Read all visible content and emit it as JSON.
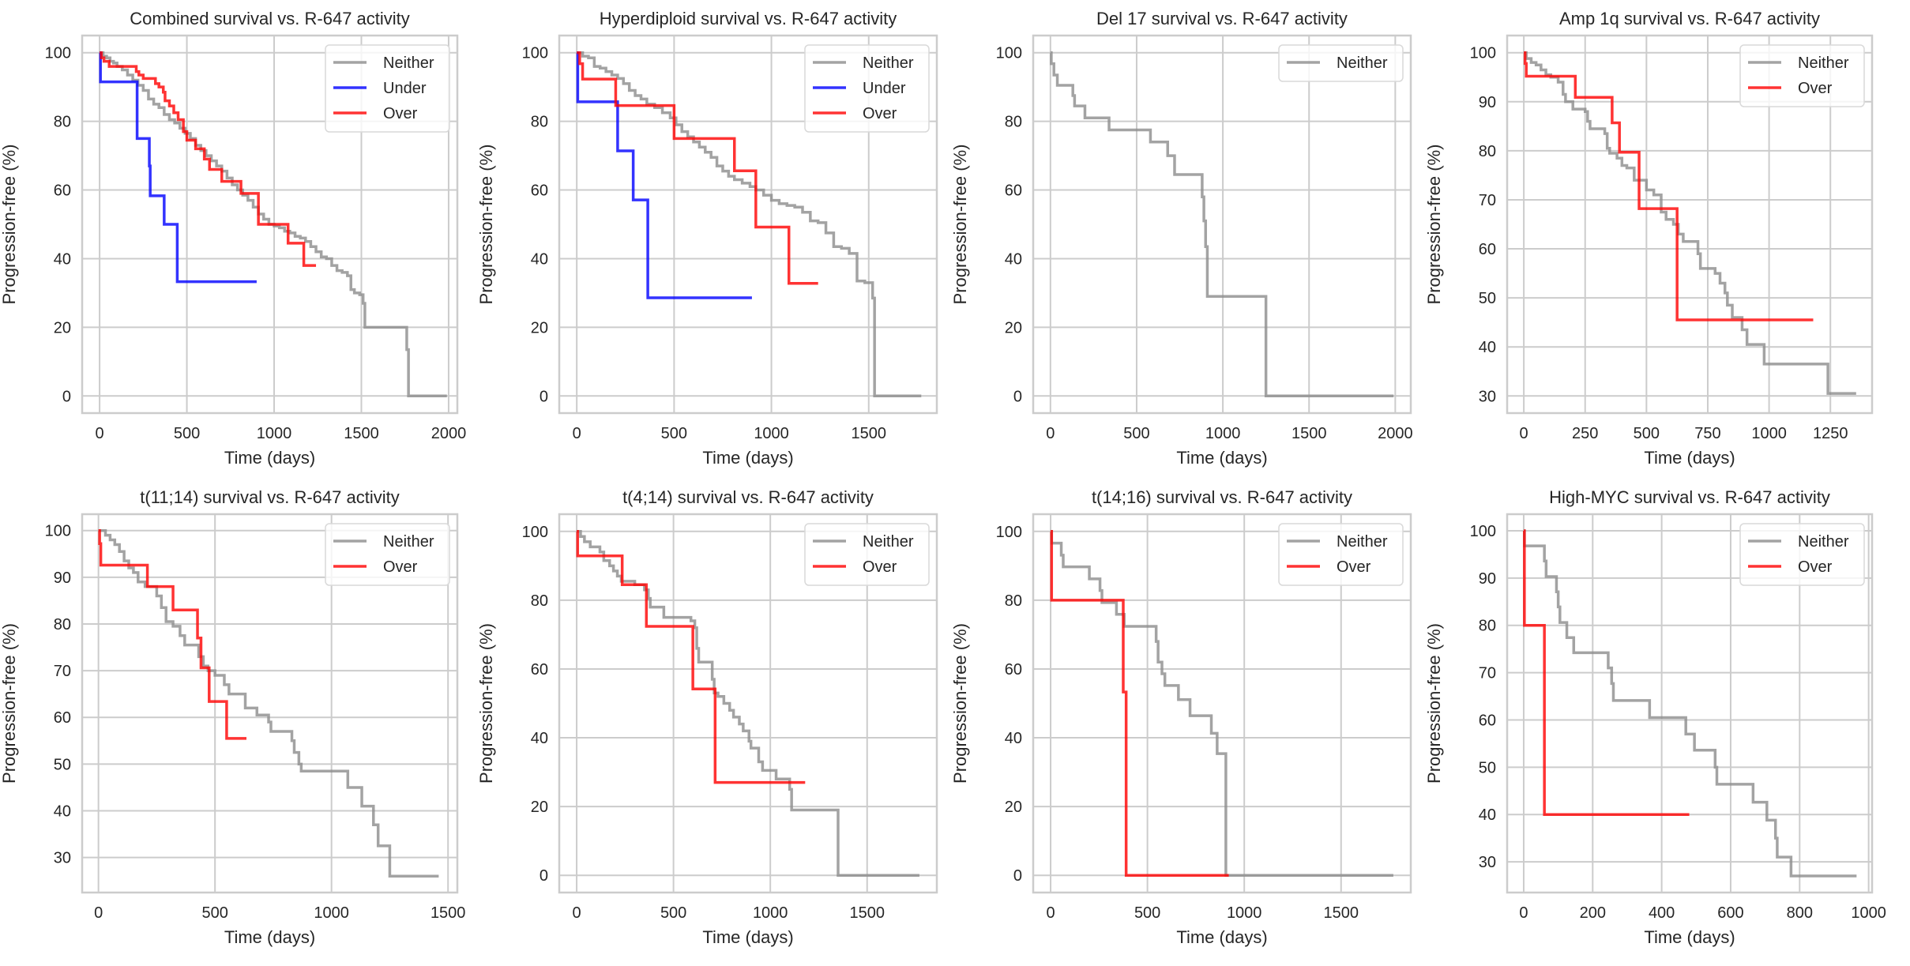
{
  "figure": {
    "series_colors": {
      "Neither": "#8c8c8c",
      "Under": "#0000ff",
      "Over": "#ff0000"
    },
    "series_opacity": 0.8
  },
  "chart_data": [
    {
      "type": "line",
      "step": true,
      "title": "Combined survival vs. R-647 activity",
      "xlabel": "Time (days)",
      "ylabel": "Progression-free (%)",
      "xlim": [
        -100,
        2050
      ],
      "ylim": [
        -5,
        105
      ],
      "xticks": [
        0,
        500,
        1000,
        1500,
        2000
      ],
      "yticks": [
        0,
        20,
        40,
        60,
        80,
        100
      ],
      "grid": true,
      "legend": {
        "position": "top-right",
        "entries": [
          "Neither",
          "Under",
          "Over"
        ]
      },
      "series": [
        {
          "name": "Neither",
          "x": [
            0,
            20,
            40,
            60,
            80,
            100,
            130,
            160,
            190,
            220,
            250,
            280,
            310,
            340,
            370,
            400,
            430,
            460,
            490,
            520,
            550,
            580,
            610,
            640,
            670,
            700,
            730,
            760,
            790,
            820,
            850,
            880,
            910,
            940,
            970,
            1000,
            1030,
            1060,
            1090,
            1120,
            1150,
            1180,
            1210,
            1240,
            1270,
            1300,
            1330,
            1360,
            1390,
            1420,
            1440,
            1460,
            1490,
            1510,
            1520,
            1760,
            1770,
            1990
          ],
          "y": [
            100,
            99,
            98.5,
            97.5,
            97,
            96,
            95,
            93.5,
            92,
            90.5,
            89,
            86.5,
            85,
            84,
            82,
            80.5,
            79.5,
            78,
            76.5,
            75,
            73,
            71.5,
            70,
            68.5,
            67,
            65.5,
            63.5,
            61.5,
            60,
            58.5,
            57,
            55,
            53,
            51.5,
            50,
            49.5,
            49,
            48,
            47.5,
            46.5,
            46,
            45,
            43.5,
            42,
            40.5,
            40,
            38,
            36.5,
            36,
            35,
            31,
            30,
            29.5,
            27,
            20,
            13.5,
            0,
            0
          ]
        },
        {
          "name": "Under",
          "x": [
            0,
            5,
            215,
            285,
            290,
            370,
            445,
            900
          ],
          "y": [
            100,
            91.5,
            75,
            67,
            58.3,
            50,
            33.3,
            33.3
          ]
        },
        {
          "name": "Over",
          "x": [
            0,
            10,
            25,
            55,
            210,
            225,
            250,
            320,
            340,
            365,
            375,
            400,
            425,
            450,
            480,
            500,
            550,
            600,
            630,
            660,
            700,
            810,
            910,
            1080,
            1170,
            1240
          ],
          "y": [
            100,
            98.5,
            97.5,
            96,
            94.5,
            93.5,
            92.5,
            91,
            90,
            88.5,
            86,
            84.5,
            82.5,
            80.5,
            77,
            74.5,
            72,
            69,
            66,
            66,
            62.5,
            59,
            50,
            44.5,
            38,
            38
          ]
        }
      ]
    },
    {
      "type": "line",
      "step": true,
      "title": "Hyperdiploid survival vs. R-647 activity",
      "xlabel": "Time (days)",
      "ylabel": "Progression-free (%)",
      "xlim": [
        -90,
        1850
      ],
      "ylim": [
        -5,
        105
      ],
      "xticks": [
        0,
        500,
        1000,
        1500
      ],
      "yticks": [
        0,
        20,
        40,
        60,
        80,
        100
      ],
      "grid": true,
      "legend": {
        "position": "top-right",
        "entries": [
          "Neither",
          "Under",
          "Over"
        ]
      },
      "series": [
        {
          "name": "Neither",
          "x": [
            0,
            30,
            60,
            90,
            120,
            150,
            180,
            210,
            240,
            270,
            300,
            330,
            360,
            400,
            440,
            480,
            510,
            540,
            570,
            600,
            630,
            660,
            690,
            720,
            750,
            780,
            810,
            850,
            890,
            920,
            960,
            1000,
            1040,
            1080,
            1120,
            1160,
            1200,
            1240,
            1280,
            1320,
            1360,
            1400,
            1440,
            1480,
            1520,
            1530,
            1770
          ],
          "y": [
            100,
            99,
            98.5,
            96,
            95.5,
            94.5,
            93.5,
            92.5,
            91,
            89,
            87.5,
            86.5,
            85,
            84,
            82.5,
            81,
            79,
            77,
            75.5,
            74,
            72.5,
            71,
            69.5,
            67,
            65.5,
            64,
            63,
            62,
            61,
            60,
            58.5,
            57,
            56,
            55.5,
            55,
            53.5,
            51,
            50.5,
            47.5,
            43.5,
            43,
            41.5,
            33.5,
            33,
            28.5,
            0,
            0
          ]
        },
        {
          "name": "Under",
          "x": [
            0,
            5,
            210,
            290,
            365,
            900
          ],
          "y": [
            100,
            85.7,
            71.4,
            57.1,
            28.6,
            28.6
          ]
        },
        {
          "name": "Over",
          "x": [
            0,
            15,
            30,
            200,
            500,
            810,
            920,
            1090,
            1240
          ],
          "y": [
            100,
            96.8,
            92.3,
            84.6,
            75,
            65.6,
            49.2,
            32.8,
            32.8
          ]
        }
      ]
    },
    {
      "type": "line",
      "step": true,
      "title": "Del 17 survival vs. R-647 activity",
      "xlabel": "Time (days)",
      "ylabel": "Progression-free (%)",
      "xlim": [
        -100,
        2090
      ],
      "ylim": [
        -5,
        105
      ],
      "xticks": [
        0,
        500,
        1000,
        1500,
        2000
      ],
      "yticks": [
        0,
        20,
        40,
        60,
        80,
        100
      ],
      "grid": true,
      "legend": {
        "position": "top-right",
        "entries": [
          "Neither"
        ]
      },
      "series": [
        {
          "name": "Neither",
          "x": [
            0,
            5,
            20,
            40,
            130,
            140,
            200,
            340,
            580,
            680,
            720,
            880,
            890,
            900,
            910,
            1250,
            1990
          ],
          "y": [
            100,
            96.8,
            93.5,
            90.5,
            87.5,
            84.5,
            81,
            77.5,
            74,
            70,
            64.5,
            58,
            51,
            43.5,
            29,
            0,
            0
          ]
        }
      ]
    },
    {
      "type": "line",
      "step": true,
      "title": "Amp 1q survival vs. R-647 activity",
      "xlabel": "Time (days)",
      "ylabel": "Progression-free (%)",
      "xlim": [
        -68,
        1420
      ],
      "ylim": [
        26.5,
        103.5
      ],
      "xticks": [
        0,
        250,
        500,
        750,
        1000,
        1250
      ],
      "yticks": [
        30,
        40,
        50,
        60,
        70,
        80,
        90,
        100
      ],
      "grid": true,
      "legend": {
        "position": "top-right",
        "entries": [
          "Neither",
          "Over"
        ]
      },
      "series": [
        {
          "name": "Neither",
          "x": [
            0,
            10,
            30,
            50,
            70,
            90,
            110,
            140,
            160,
            170,
            200,
            250,
            260,
            270,
            330,
            340,
            350,
            380,
            400,
            420,
            450,
            480,
            500,
            530,
            560,
            580,
            610,
            630,
            650,
            710,
            720,
            740,
            780,
            800,
            820,
            830,
            850,
            890,
            910,
            980,
            1240,
            1260,
            1355
          ],
          "y": [
            100,
            98.8,
            98,
            97.5,
            96.5,
            95.5,
            95,
            94,
            91.5,
            90,
            88.5,
            88,
            86,
            84.5,
            83.5,
            80.5,
            79.5,
            78.5,
            77,
            76.5,
            74,
            74,
            72,
            71,
            67.5,
            66,
            65,
            63,
            61.5,
            59,
            56,
            56,
            55,
            53,
            51,
            48.5,
            46,
            43.5,
            40.5,
            36.5,
            30.5,
            30.5,
            30.5
          ]
        },
        {
          "name": "Over",
          "x": [
            0,
            5,
            10,
            210,
            360,
            390,
            470,
            625,
            1180
          ],
          "y": [
            100,
            97.8,
            95.2,
            90.9,
            85.7,
            79.7,
            68.2,
            45.5,
            45.5
          ]
        }
      ]
    },
    {
      "type": "line",
      "step": true,
      "title": "t(11;14) survival vs. R-647 activity",
      "xlabel": "Time (days)",
      "ylabel": "Progression-free (%)",
      "xlim": [
        -70,
        1540
      ],
      "ylim": [
        22.5,
        103.5
      ],
      "xticks": [
        0,
        500,
        1000,
        1500
      ],
      "yticks": [
        30,
        40,
        50,
        60,
        70,
        80,
        90,
        100
      ],
      "grid": true,
      "legend": {
        "position": "top-right",
        "entries": [
          "Neither",
          "Over"
        ]
      },
      "series": [
        {
          "name": "Neither",
          "x": [
            0,
            30,
            50,
            70,
            90,
            110,
            130,
            150,
            170,
            200,
            250,
            270,
            290,
            320,
            350,
            370,
            400,
            430,
            450,
            470,
            500,
            540,
            560,
            580,
            630,
            680,
            730,
            740,
            830,
            840,
            860,
            870,
            1070,
            1130,
            1180,
            1200,
            1250,
            1460
          ],
          "y": [
            100,
            99,
            98,
            97,
            95.5,
            93.5,
            92,
            91,
            89,
            88,
            86,
            83.5,
            80.5,
            79.5,
            77.5,
            75.5,
            75.5,
            73,
            71,
            70,
            69,
            67,
            65,
            65,
            62,
            60.5,
            59,
            57,
            55,
            52.5,
            50,
            48.5,
            45,
            41,
            37,
            32.5,
            26,
            26
          ]
        },
        {
          "name": "Over",
          "x": [
            0,
            5,
            10,
            210,
            320,
            425,
            440,
            475,
            550,
            635
          ],
          "y": [
            100,
            97.2,
            92.6,
            88,
            83,
            77,
            70.6,
            63.4,
            55.5,
            55.5
          ]
        }
      ]
    },
    {
      "type": "line",
      "step": true,
      "title": "t(4;14) survival vs. R-647 activity",
      "xlabel": "Time (days)",
      "ylabel": "Progression-free (%)",
      "xlim": [
        -90,
        1860
      ],
      "ylim": [
        -5,
        105
      ],
      "xticks": [
        0,
        500,
        1000,
        1500
      ],
      "yticks": [
        0,
        20,
        40,
        60,
        80,
        100
      ],
      "grid": true,
      "legend": {
        "position": "top-right",
        "entries": [
          "Neither",
          "Over"
        ]
      },
      "series": [
        {
          "name": "Neither",
          "x": [
            0,
            20,
            40,
            70,
            120,
            140,
            170,
            190,
            210,
            230,
            250,
            300,
            350,
            370,
            380,
            400,
            450,
            590,
            610,
            620,
            630,
            700,
            710,
            730,
            760,
            790,
            810,
            840,
            860,
            890,
            900,
            940,
            960,
            1030,
            1100,
            1110,
            1350,
            1770
          ],
          "y": [
            100,
            98.5,
            97,
            95.5,
            94,
            91.5,
            90,
            88.5,
            87,
            85.5,
            85.5,
            84.5,
            83,
            80.5,
            78,
            78,
            75,
            74,
            72,
            66,
            62,
            57,
            53,
            52,
            50,
            48,
            46,
            44,
            42,
            39,
            37,
            33,
            30.5,
            28,
            25,
            19,
            0,
            0
          ]
        },
        {
          "name": "Over",
          "x": [
            0,
            5,
            235,
            360,
            600,
            715,
            1180
          ],
          "y": [
            100,
            92.9,
            84.5,
            72.4,
            54.2,
            27,
            27
          ]
        }
      ]
    },
    {
      "type": "line",
      "step": true,
      "title": "t(14;16) survival vs. R-647 activity",
      "xlabel": "Time (days)",
      "ylabel": "Progression-free (%)",
      "xlim": [
        -90,
        1860
      ],
      "ylim": [
        -5,
        105
      ],
      "xticks": [
        0,
        500,
        1000,
        1500
      ],
      "yticks": [
        0,
        20,
        40,
        60,
        80,
        100
      ],
      "grid": true,
      "legend": {
        "position": "top-right",
        "entries": [
          "Neither",
          "Over"
        ]
      },
      "series": [
        {
          "name": "Neither",
          "x": [
            0,
            5,
            55,
            65,
            200,
            255,
            265,
            340,
            380,
            545,
            555,
            575,
            590,
            660,
            720,
            830,
            860,
            905,
            1770
          ],
          "y": [
            100,
            96.6,
            93.1,
            89.7,
            86.2,
            82.8,
            79.3,
            75.9,
            72.4,
            68,
            62,
            58.6,
            55.2,
            51.1,
            46.4,
            41.3,
            35.4,
            0,
            0
          ]
        },
        {
          "name": "Over",
          "x": [
            0,
            5,
            375,
            390,
            920
          ],
          "y": [
            100,
            80,
            53.3,
            0,
            0
          ]
        }
      ]
    },
    {
      "type": "line",
      "step": true,
      "title": "High-MYC survival vs. R-647 activity",
      "xlabel": "Time (days)",
      "ylabel": "Progression-free (%)",
      "xlim": [
        -48,
        1010
      ],
      "ylim": [
        23.5,
        103.5
      ],
      "xticks": [
        0,
        200,
        400,
        600,
        800,
        1000
      ],
      "yticks": [
        30,
        40,
        50,
        60,
        70,
        80,
        90,
        100
      ],
      "grid": true,
      "legend": {
        "position": "top-right",
        "entries": [
          "Neither",
          "Over"
        ]
      },
      "series": [
        {
          "name": "Neither",
          "x": [
            0,
            2,
            60,
            65,
            95,
            100,
            105,
            125,
            145,
            165,
            245,
            255,
            260,
            365,
            470,
            495,
            555,
            560,
            665,
            705,
            730,
            735,
            775,
            965
          ],
          "y": [
            100,
            96.8,
            93.6,
            90.3,
            87.1,
            83.9,
            80.6,
            77.4,
            74.2,
            74.2,
            71,
            67.7,
            64.1,
            60.5,
            57,
            53.6,
            50,
            46.4,
            42.6,
            38.8,
            35,
            31,
            27,
            27
          ]
        },
        {
          "name": "Over",
          "x": [
            0,
            2,
            60,
            480
          ],
          "y": [
            100,
            80,
            40,
            40
          ]
        }
      ]
    }
  ]
}
